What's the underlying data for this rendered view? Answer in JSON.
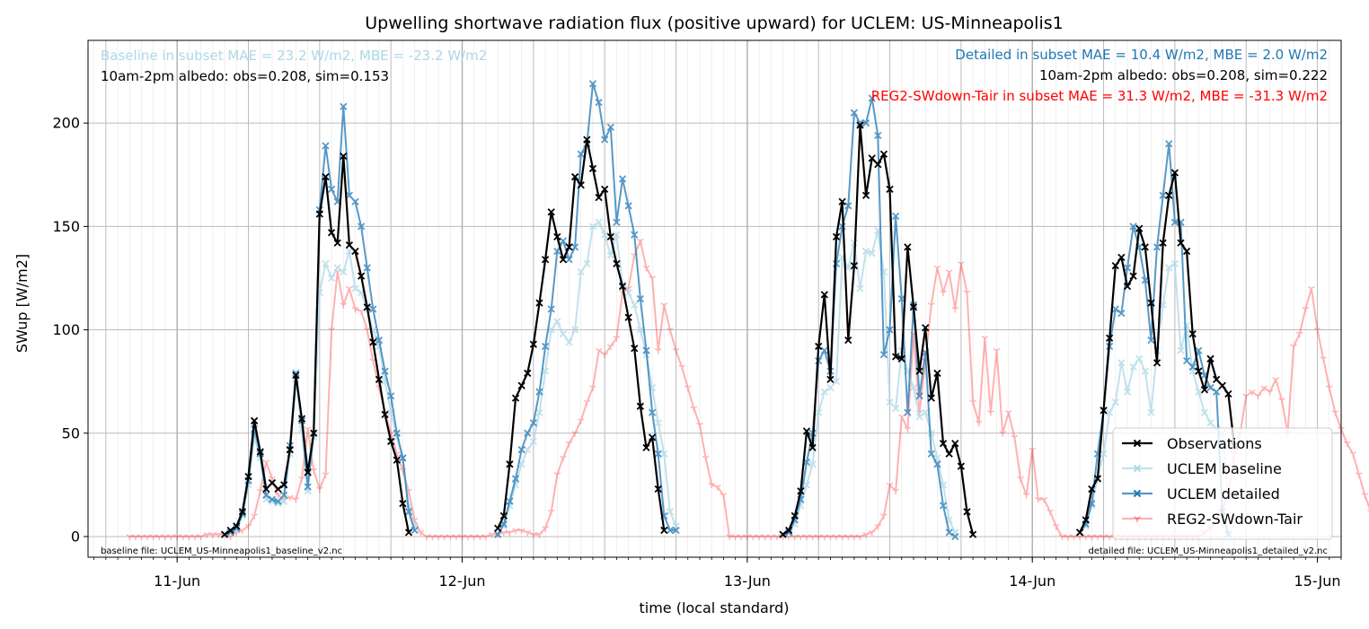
{
  "chart_data": {
    "type": "line",
    "title": "Upwelling shortwave radiation flux (positive upward) for UCLEM: US-Minneapolis1",
    "xlabel": "time (local standard)",
    "ylabel": "SWup [W/m2]",
    "xlim": [
      "2017-06-10T16:30",
      "2017-06-15T02:00"
    ],
    "ylim": [
      -10,
      240
    ],
    "x_tick_labels": [
      {
        "t": "2017-06-11T00:00",
        "label": "11-Jun"
      },
      {
        "t": "2017-06-12T00:00",
        "label": "12-Jun"
      },
      {
        "t": "2017-06-13T00:00",
        "label": "13-Jun"
      },
      {
        "t": "2017-06-14T00:00",
        "label": "14-Jun"
      },
      {
        "t": "2017-06-15T00:00",
        "label": "15-Jun"
      }
    ],
    "x_minor_ticks": "hourly",
    "y_ticks": [
      0,
      50,
      100,
      150,
      200
    ],
    "grid": true,
    "legend_position": "lower right",
    "annotations": {
      "top_left": [
        {
          "text": "Baseline in subset MAE = 23.2 W/m2, MBE = -23.2 W/m2",
          "color": "#add8e6"
        },
        {
          "text": "10am-2pm albedo: obs=0.208, sim=0.153",
          "color": "#000000"
        }
      ],
      "top_right": [
        {
          "text": "Detailed in subset MAE = 10.4 W/m2, MBE = 2.0 W/m2",
          "color": "#1f77b4"
        },
        {
          "text": "10am-2pm albedo: obs=0.208, sim=0.222",
          "color": "#000000"
        },
        {
          "text": "REG2-SWdown-Tair in subset MAE = 31.3 W/m2, MBE = -31.3 W/m2",
          "color": "#ff0000"
        }
      ],
      "footer_left": "baseline file: UCLEM_US-Minneapolis1_baseline_v2.nc",
      "footer_right": "detailed file: UCLEM_US-Minneapolis1_detailed_v2.nc"
    },
    "day_starts": [
      "2017-06-11T00:00",
      "2017-06-12T00:00",
      "2017-06-13T00:00",
      "2017-06-14T00:00"
    ],
    "series": [
      {
        "name": "REG2-SWdown-Tair",
        "color": "#ff0000",
        "opacity": 0.3,
        "marker": "tri",
        "segments": [
          {
            "start": "2017-06-10T20:00",
            "step_min": 30,
            "values": [
              0,
              0,
              0,
              0,
              0,
              0,
              0,
              0,
              0,
              0,
              0,
              0,
              0,
              1,
              1,
              1,
              1,
              0,
              2,
              3,
              5,
              10,
              22,
              36,
              28,
              20,
              18,
              19,
              18,
              28,
              52,
              32,
              23,
              30,
              100,
              128,
              112,
              120,
              110,
              109,
              100,
              85,
              72,
              60,
              50,
              40,
              32,
              22,
              8,
              2,
              0,
              0,
              0,
              0,
              0,
              0,
              0,
              0,
              0,
              0,
              0,
              1,
              1,
              2,
              2,
              3,
              3,
              2,
              1,
              1,
              4,
              12,
              30,
              38,
              45,
              50,
              56,
              65,
              72,
              90,
              88,
              92,
              96,
              118,
              120,
              136,
              143,
              130,
              125,
              90,
              112,
              100,
              90,
              82,
              72,
              62,
              54,
              38,
              25,
              24,
              20,
              0,
              0,
              0,
              0,
              0,
              0,
              0,
              0,
              0,
              0,
              0,
              0,
              0,
              0,
              0,
              0,
              0,
              0,
              0,
              0,
              0,
              0,
              0,
              1,
              2,
              5,
              10,
              25,
              22,
              58,
              52,
              98,
              60,
              85,
              112,
              130,
              118,
              128,
              110,
              132,
              118,
              65,
              55,
              96,
              60,
              90,
              50,
              60,
              48,
              28,
              20,
              42,
              18,
              18,
              12,
              5,
              0,
              0,
              0,
              0,
              0,
              0,
              0,
              0,
              0,
              0,
              0,
              0,
              0,
              0,
              0,
              0,
              0,
              0,
              0,
              0,
              0,
              0,
              0,
              0,
              2,
              4,
              8,
              14,
              20,
              40,
              50,
              68,
              70,
              68,
              72,
              70,
              76,
              66,
              50,
              92,
              98,
              110,
              120,
              100,
              86,
              72,
              60,
              52,
              45,
              40,
              30,
              20,
              12,
              5
            ]
          }
        ]
      },
      {
        "name": "UCLEM baseline",
        "color": "#add8e6",
        "opacity": 0.75,
        "marker": "x",
        "segments": [
          {
            "start": "2017-06-11T04:00",
            "step_min": 30,
            "values": [
              1,
              2,
              3,
              10,
              25,
              48,
              38,
              18,
              17,
              16,
              17,
              40,
              76,
              52,
              22,
              48,
              118,
              132,
              125,
              130,
              128,
              138,
              120,
              118,
              110,
              100,
              92,
              75,
              60,
              48,
              38,
              15,
              5
            ]
          },
          {
            "start": "2017-06-12T03:00",
            "step_min": 30,
            "values": [
              1,
              5,
              15,
              25,
              35,
              42,
              46,
              60,
              80,
              100,
              104,
              98,
              94,
              100,
              128,
              132,
              150,
              152,
              146,
              136,
              146,
              122,
              118,
              112,
              100,
              88,
              72,
              55,
              40,
              12,
              5
            ]
          },
          {
            "start": "2017-06-13T03:00",
            "step_min": 30,
            "values": [
              1,
              2,
              6,
              15,
              25,
              35,
              60,
              70,
              72,
              75,
              135,
              130,
              142,
              120,
              138,
              137,
              148,
              128,
              65,
              62,
              90,
              80,
              72,
              58,
              60,
              50,
              38,
              25,
              8,
              2
            ]
          },
          {
            "start": "2017-06-14T04:00",
            "step_min": 30,
            "values": [
              2,
              5,
              15,
              28,
              40,
              60,
              65,
              84,
              70,
              82,
              86,
              80,
              60,
              90,
              112,
              130,
              132,
              90,
              102,
              80,
              70,
              60,
              55,
              52,
              50,
              20
            ]
          }
        ]
      },
      {
        "name": "UCLEM detailed",
        "color": "#1f77b4",
        "opacity": 0.75,
        "marker": "x",
        "segments": [
          {
            "start": "2017-06-11T04:00",
            "step_min": 30,
            "values": [
              1,
              2,
              4,
              11,
              27,
              52,
              40,
              20,
              18,
              17,
              20,
              44,
              79,
              56,
              24,
              50,
              158,
              189,
              168,
              162,
              208,
              165,
              162,
              150,
              130,
              110,
              95,
              80,
              68,
              50,
              38,
              12,
              3
            ]
          },
          {
            "start": "2017-06-12T03:00",
            "step_min": 30,
            "values": [
              1,
              6,
              17,
              28,
              42,
              50,
              55,
              70,
              92,
              110,
              138,
              143,
              134,
              140,
              185,
              190,
              219,
              210,
              192,
              198,
              152,
              173,
              160,
              146,
              115,
              90,
              60,
              40,
              10,
              3,
              3
            ]
          },
          {
            "start": "2017-06-13T03:00",
            "step_min": 30,
            "values": [
              1,
              2,
              8,
              18,
              36,
              50,
              85,
              90,
              80,
              132,
              150,
              160,
              205,
              200,
              200,
              212,
              194,
              88,
              100,
              155,
              115,
              60,
              112,
              68,
              89,
              40,
              35,
              15,
              2,
              0
            ]
          },
          {
            "start": "2017-06-14T04:00",
            "step_min": 30,
            "values": [
              2,
              6,
              16,
              40,
              61,
              92,
              110,
              108,
              130,
              150,
              140,
              124,
              95,
              140,
              165,
              190,
              152,
              152,
              85,
              82,
              90,
              78,
              72,
              70,
              12,
              1
            ]
          }
        ]
      },
      {
        "name": "Observations",
        "color": "#000000",
        "opacity": 1,
        "marker": "x",
        "segments": [
          {
            "start": "2017-06-11T04:00",
            "step_min": 30,
            "values": [
              1,
              3,
              5,
              12,
              29,
              56,
              41,
              23,
              26,
              23,
              25,
              42,
              78,
              57,
              31,
              50,
              156,
              174,
              147,
              142,
              184,
              141,
              138,
              126,
              111,
              94,
              76,
              59,
              46,
              37,
              16,
              2
            ]
          },
          {
            "start": "2017-06-12T03:00",
            "step_min": 30,
            "values": [
              4,
              10,
              35,
              67,
              73,
              79,
              93,
              113,
              134,
              157,
              145,
              134,
              140,
              174,
              170,
              192,
              178,
              164,
              168,
              145,
              132,
              121,
              106,
              91,
              63,
              43,
              48,
              23,
              3
            ]
          },
          {
            "start": "2017-06-13T03:00",
            "step_min": 30,
            "values": [
              1,
              3,
              10,
              22,
              51,
              43,
              92,
              117,
              76,
              145,
              162,
              95,
              131,
              199,
              165,
              183,
              180,
              185,
              168,
              87,
              86,
              140,
              111,
              80,
              101,
              67,
              79,
              45,
              40,
              45,
              34,
              12,
              1
            ]
          },
          {
            "start": "2017-06-14T04:00",
            "step_min": 30,
            "values": [
              2,
              8,
              23,
              28,
              61,
              96,
              131,
              135,
              121,
              126,
              149,
              140,
              113,
              84,
              142,
              165,
              176,
              142,
              138,
              98,
              80,
              71,
              86,
              76,
              73,
              69,
              44
            ]
          }
        ]
      }
    ]
  }
}
